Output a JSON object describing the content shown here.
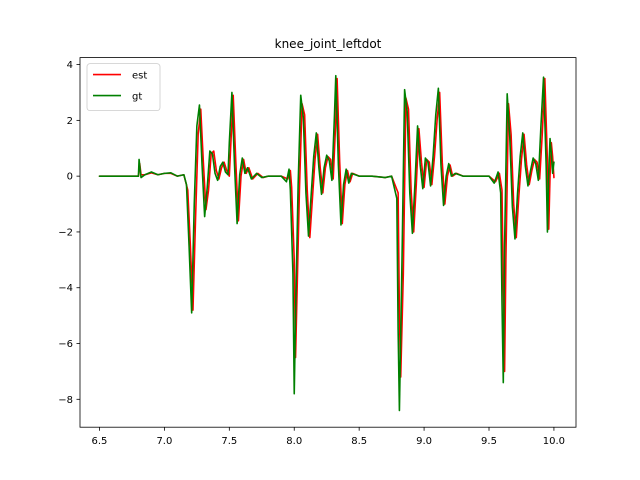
{
  "chart_data": {
    "type": "line",
    "title": "knee_joint_leftdot",
    "xlabel": "",
    "ylabel": "",
    "xlim": [
      6.35,
      10.17
    ],
    "ylim": [
      -9.0,
      4.25
    ],
    "grid": false,
    "legend_position": "top-left",
    "x_ticks": [
      6.5,
      7.0,
      7.5,
      8.0,
      8.5,
      9.0,
      9.5,
      10.0
    ],
    "x_tick_labels": [
      "6.5",
      "7.0",
      "7.5",
      "8.0",
      "8.5",
      "9.0",
      "9.5",
      "10.0"
    ],
    "y_ticks": [
      -8,
      -6,
      -4,
      -2,
      0,
      2,
      4
    ],
    "y_tick_labels": [
      "−8",
      "−6",
      "−4",
      "−2",
      "0",
      "2",
      "4"
    ],
    "series": [
      {
        "name": "est",
        "color": "#ff0000",
        "points": [
          [
            6.5,
            0
          ],
          [
            6.6,
            0
          ],
          [
            6.7,
            0
          ],
          [
            6.8,
            0
          ],
          [
            6.81,
            0.45
          ],
          [
            6.82,
            0.05
          ],
          [
            6.85,
            0.05
          ],
          [
            6.9,
            0.12
          ],
          [
            6.95,
            0.05
          ],
          [
            7.0,
            0.1
          ],
          [
            7.05,
            0.1
          ],
          [
            7.1,
            0.0
          ],
          [
            7.15,
            0.05
          ],
          [
            7.18,
            -0.5
          ],
          [
            7.2,
            -2.5
          ],
          [
            7.22,
            -4.8
          ],
          [
            7.24,
            -1.5
          ],
          [
            7.26,
            1.5
          ],
          [
            7.28,
            2.4
          ],
          [
            7.3,
            0.5
          ],
          [
            7.32,
            -1.2
          ],
          [
            7.34,
            -0.5
          ],
          [
            7.36,
            0.8
          ],
          [
            7.38,
            0.9
          ],
          [
            7.4,
            0.2
          ],
          [
            7.42,
            -0.1
          ],
          [
            7.44,
            0.3
          ],
          [
            7.46,
            0.5
          ],
          [
            7.48,
            0.2
          ],
          [
            7.5,
            0.0
          ],
          [
            7.51,
            1.0
          ],
          [
            7.53,
            2.9
          ],
          [
            7.55,
            0.5
          ],
          [
            7.57,
            -1.6
          ],
          [
            7.59,
            0.0
          ],
          [
            7.61,
            0.6
          ],
          [
            7.63,
            0.1
          ],
          [
            7.65,
            0.3
          ],
          [
            7.68,
            -0.1
          ],
          [
            7.72,
            0.1
          ],
          [
            7.76,
            -0.05
          ],
          [
            7.8,
            0.0
          ],
          [
            7.9,
            0.0
          ],
          [
            7.95,
            -0.1
          ],
          [
            7.97,
            0.2
          ],
          [
            7.98,
            -0.4
          ],
          [
            8.0,
            -3.0
          ],
          [
            8.01,
            -6.5
          ],
          [
            8.02,
            -4.5
          ],
          [
            8.04,
            -0.5
          ],
          [
            8.06,
            2.6
          ],
          [
            8.08,
            2.2
          ],
          [
            8.1,
            -0.5
          ],
          [
            8.12,
            -2.2
          ],
          [
            8.14,
            -0.8
          ],
          [
            8.16,
            0.6
          ],
          [
            8.18,
            1.5
          ],
          [
            8.2,
            0.3
          ],
          [
            8.22,
            -0.6
          ],
          [
            8.24,
            0.3
          ],
          [
            8.26,
            0.7
          ],
          [
            8.28,
            0.6
          ],
          [
            8.3,
            -0.1
          ],
          [
            8.32,
            2.0
          ],
          [
            8.33,
            3.5
          ],
          [
            8.35,
            0.5
          ],
          [
            8.37,
            -1.7
          ],
          [
            8.39,
            -0.3
          ],
          [
            8.41,
            0.2
          ],
          [
            8.43,
            -0.2
          ],
          [
            8.45,
            0.1
          ],
          [
            8.5,
            0.0
          ],
          [
            8.6,
            0.0
          ],
          [
            8.7,
            -0.05
          ],
          [
            8.75,
            0.0
          ],
          [
            8.8,
            -0.6
          ],
          [
            8.81,
            -5.0
          ],
          [
            8.82,
            -7.2
          ],
          [
            8.84,
            -3.5
          ],
          [
            8.86,
            2.8
          ],
          [
            8.88,
            2.4
          ],
          [
            8.9,
            -0.5
          ],
          [
            8.92,
            -2.0
          ],
          [
            8.94,
            -0.3
          ],
          [
            8.96,
            1.7
          ],
          [
            8.98,
            0.5
          ],
          [
            9.0,
            -0.4
          ],
          [
            9.02,
            0.6
          ],
          [
            9.04,
            0.5
          ],
          [
            9.06,
            -0.3
          ],
          [
            9.08,
            0.7
          ],
          [
            9.1,
            2.0
          ],
          [
            9.12,
            3.0
          ],
          [
            9.14,
            0.5
          ],
          [
            9.16,
            -1.0
          ],
          [
            9.18,
            0.0
          ],
          [
            9.2,
            0.4
          ],
          [
            9.22,
            0.0
          ],
          [
            9.25,
            0.1
          ],
          [
            9.3,
            0.0
          ],
          [
            9.4,
            0.0
          ],
          [
            9.5,
            0.0
          ],
          [
            9.55,
            -0.2
          ],
          [
            9.58,
            0.1
          ],
          [
            9.6,
            -0.5
          ],
          [
            9.61,
            -4.0
          ],
          [
            9.62,
            -7.0
          ],
          [
            9.63,
            -3.0
          ],
          [
            9.65,
            2.6
          ],
          [
            9.67,
            1.5
          ],
          [
            9.69,
            -1.0
          ],
          [
            9.71,
            -2.2
          ],
          [
            9.73,
            -0.7
          ],
          [
            9.75,
            0.6
          ],
          [
            9.77,
            1.5
          ],
          [
            9.79,
            0.4
          ],
          [
            9.81,
            -0.3
          ],
          [
            9.83,
            0.2
          ],
          [
            9.85,
            0.6
          ],
          [
            9.87,
            0.5
          ],
          [
            9.89,
            -0.1
          ],
          [
            9.91,
            1.5
          ],
          [
            9.93,
            3.5
          ],
          [
            9.95,
            0.5
          ],
          [
            9.96,
            -1.9
          ],
          [
            9.97,
            0.0
          ],
          [
            9.98,
            1.2
          ],
          [
            9.99,
            0.7
          ],
          [
            10.0,
            -0.05
          ]
        ]
      },
      {
        "name": "gt",
        "color": "#008000",
        "points": [
          [
            6.5,
            0
          ],
          [
            6.6,
            0
          ],
          [
            6.7,
            0
          ],
          [
            6.8,
            0
          ],
          [
            6.805,
            0.6
          ],
          [
            6.82,
            -0.05
          ],
          [
            6.85,
            0.05
          ],
          [
            6.9,
            0.15
          ],
          [
            6.95,
            0.05
          ],
          [
            7.0,
            0.1
          ],
          [
            7.05,
            0.12
          ],
          [
            7.1,
            0.0
          ],
          [
            7.15,
            0.05
          ],
          [
            7.17,
            -0.3
          ],
          [
            7.19,
            -2.5
          ],
          [
            7.21,
            -4.9
          ],
          [
            7.23,
            -1.0
          ],
          [
            7.25,
            1.8
          ],
          [
            7.27,
            2.55
          ],
          [
            7.29,
            0.4
          ],
          [
            7.31,
            -1.45
          ],
          [
            7.33,
            -0.4
          ],
          [
            7.35,
            0.9
          ],
          [
            7.37,
            0.8
          ],
          [
            7.39,
            0.1
          ],
          [
            7.41,
            -0.15
          ],
          [
            7.43,
            0.35
          ],
          [
            7.45,
            0.5
          ],
          [
            7.47,
            0.15
          ],
          [
            7.49,
            0.05
          ],
          [
            7.5,
            1.2
          ],
          [
            7.52,
            3.0
          ],
          [
            7.54,
            0.4
          ],
          [
            7.56,
            -1.7
          ],
          [
            7.58,
            0.05
          ],
          [
            7.6,
            0.65
          ],
          [
            7.62,
            0.1
          ],
          [
            7.64,
            0.3
          ],
          [
            7.67,
            -0.1
          ],
          [
            7.71,
            0.1
          ],
          [
            7.75,
            -0.05
          ],
          [
            7.8,
            0.0
          ],
          [
            7.9,
            0.0
          ],
          [
            7.94,
            -0.2
          ],
          [
            7.96,
            0.25
          ],
          [
            7.97,
            -0.5
          ],
          [
            7.99,
            -3.5
          ],
          [
            8.0,
            -7.8
          ],
          [
            8.01,
            -5.0
          ],
          [
            8.03,
            -0.3
          ],
          [
            8.05,
            2.9
          ],
          [
            8.07,
            2.1
          ],
          [
            8.09,
            -0.6
          ],
          [
            8.11,
            -2.15
          ],
          [
            8.13,
            -0.7
          ],
          [
            8.15,
            0.7
          ],
          [
            8.17,
            1.55
          ],
          [
            8.19,
            0.3
          ],
          [
            8.21,
            -0.65
          ],
          [
            8.23,
            0.3
          ],
          [
            8.25,
            0.75
          ],
          [
            8.27,
            0.55
          ],
          [
            8.29,
            -0.15
          ],
          [
            8.31,
            2.2
          ],
          [
            8.32,
            3.6
          ],
          [
            8.34,
            0.4
          ],
          [
            8.36,
            -1.75
          ],
          [
            8.38,
            -0.3
          ],
          [
            8.4,
            0.25
          ],
          [
            8.42,
            -0.25
          ],
          [
            8.44,
            0.1
          ],
          [
            8.5,
            0.0
          ],
          [
            8.6,
            0.0
          ],
          [
            8.7,
            -0.05
          ],
          [
            8.75,
            0.0
          ],
          [
            8.79,
            -0.8
          ],
          [
            8.8,
            -5.5
          ],
          [
            8.81,
            -8.4
          ],
          [
            8.83,
            -3.0
          ],
          [
            8.85,
            3.1
          ],
          [
            8.87,
            2.3
          ],
          [
            8.89,
            -0.6
          ],
          [
            8.91,
            -2.05
          ],
          [
            8.93,
            -0.25
          ],
          [
            8.95,
            1.8
          ],
          [
            8.97,
            0.4
          ],
          [
            8.99,
            -0.45
          ],
          [
            9.01,
            0.65
          ],
          [
            9.03,
            0.5
          ],
          [
            9.05,
            -0.35
          ],
          [
            9.07,
            0.75
          ],
          [
            9.09,
            2.2
          ],
          [
            9.11,
            3.15
          ],
          [
            9.13,
            0.4
          ],
          [
            9.15,
            -1.05
          ],
          [
            9.17,
            0.0
          ],
          [
            9.19,
            0.45
          ],
          [
            9.21,
            0.0
          ],
          [
            9.24,
            0.1
          ],
          [
            9.3,
            0.0
          ],
          [
            9.4,
            0.0
          ],
          [
            9.5,
            0.0
          ],
          [
            9.54,
            -0.25
          ],
          [
            9.57,
            0.15
          ],
          [
            9.59,
            -0.6
          ],
          [
            9.6,
            -4.5
          ],
          [
            9.61,
            -7.4
          ],
          [
            9.62,
            -2.5
          ],
          [
            9.64,
            2.95
          ],
          [
            9.66,
            1.4
          ],
          [
            9.68,
            -1.1
          ],
          [
            9.7,
            -2.25
          ],
          [
            9.72,
            -0.6
          ],
          [
            9.74,
            0.7
          ],
          [
            9.76,
            1.55
          ],
          [
            9.78,
            0.35
          ],
          [
            9.8,
            -0.35
          ],
          [
            9.82,
            0.2
          ],
          [
            9.84,
            0.65
          ],
          [
            9.86,
            0.45
          ],
          [
            9.88,
            -0.15
          ],
          [
            9.9,
            1.8
          ],
          [
            9.92,
            3.55
          ],
          [
            9.94,
            0.4
          ],
          [
            9.95,
            -2.0
          ],
          [
            9.96,
            0.1
          ],
          [
            9.97,
            1.35
          ],
          [
            9.98,
            0.8
          ],
          [
            9.99,
            0.1
          ],
          [
            10.0,
            0.5
          ]
        ]
      }
    ]
  }
}
